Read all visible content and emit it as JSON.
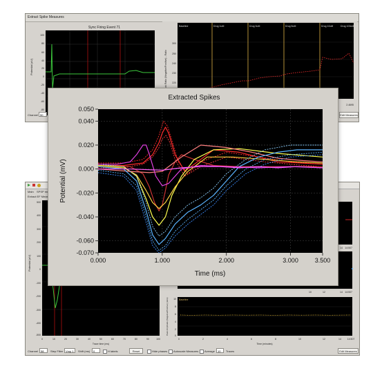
{
  "top_window": {
    "title": "Extract Spike Measures",
    "left_plot": {
      "title": "Sync Firing Event 71",
      "ylabel": "Potential (uV)",
      "yticks": [
        "100",
        "80",
        "60",
        "40",
        "20",
        "0",
        "-20",
        "-40",
        "-60",
        "-80"
      ]
    },
    "right_plot": {
      "ylabel": "Peak Ratio (Negative/Positive) - Ratio",
      "phases": [
        "Baseline",
        "Drug 1uM",
        "Drug 3uM",
        "Drug 5uM",
        "Drug 10uM",
        "Drug 100uM"
      ],
      "yticks": [
        "300",
        "250",
        "240",
        "230",
        "220",
        "210"
      ],
      "x_end": "2.4695"
    },
    "channel_label": "Channel",
    "channel_value": "50",
    "edit_button": "Edit Measures"
  },
  "bottom_window": {
    "menu": "Main",
    "menu2": "SPSP me...",
    "subtitle": "Extract EF Measures",
    "left_plot": {
      "ylabel": "Potential (uV)",
      "yticks": [
        "500",
        "400",
        "300",
        "200",
        "100",
        "0",
        "-100",
        "-200",
        "-300",
        "-400",
        "-500"
      ],
      "xticks": [
        "0",
        "10",
        "20",
        "30",
        "40",
        "50",
        "60",
        "70",
        "80",
        "90",
        "100"
      ],
      "xlabel": "Trace time (ms)"
    },
    "right_plots": [
      {
        "xticks": [
          "14",
          "14:507"
        ]
      },
      {
        "xticks": [
          "14",
          "14:507"
        ]
      },
      {
        "title": "Baseline",
        "ylabel": "Peak Amplitude (Negative/Positive) (ratio)",
        "yticks": [
          "10",
          "8",
          "6",
          "4",
          "2",
          "0"
        ],
        "xticks": [
          "0",
          "2",
          "4",
          "6",
          "8",
          "10",
          "12",
          "14",
          "14:507"
        ],
        "xlabel": "Time (minutes)"
      }
    ],
    "mid_xticks": [
      "10",
      "12"
    ],
    "toolbar": {
      "channel_label": "Channel",
      "channel_value": "58",
      "step_filter_label": "Step Filter",
      "step_filter_value": "Vmp 1",
      "shift_label": "Shift (ms)",
      "shift_value": "0",
      "hlabels": "H labels",
      "reset": "Reset",
      "hide_phases": "Hide phases",
      "autoscale": "Autoscale Measures",
      "average_label": "Average",
      "average_value": "10",
      "traces": "Traces",
      "edit": "Edit Measures"
    }
  },
  "main_window": {
    "title": "Extracted Spikes"
  },
  "chart_data": {
    "type": "line",
    "title": "Extracted Spikes",
    "xlabel": "Time (ms)",
    "ylabel": "Potential (mV)",
    "xlim": [
      0,
      3.5
    ],
    "ylim": [
      -0.07,
      0.05
    ],
    "xticks": [
      "0.000",
      "1.000",
      "2.000",
      "3.000",
      "3.500"
    ],
    "yticks": [
      "0.050",
      "0.040",
      "0.020",
      "0.000",
      "-0.020",
      "-0.040",
      "-0.060",
      "-0.070"
    ],
    "grid": true,
    "series": [
      {
        "color": "#ff2a2a",
        "dashed": false,
        "x": [
          0,
          0.4,
          0.7,
          0.85,
          0.95,
          1.0,
          1.05,
          1.1,
          1.2,
          1.35,
          1.5,
          1.8,
          2.2,
          2.8,
          3.5
        ],
        "y": [
          0.003,
          0.003,
          0.005,
          0.012,
          0.022,
          0.03,
          0.035,
          0.03,
          0.012,
          -0.002,
          0.004,
          0.016,
          0.014,
          0.006,
          0.004
        ]
      },
      {
        "color": "#ff2a2a",
        "dashed": true,
        "x": [
          0,
          0.4,
          0.7,
          0.85,
          0.95,
          1.02,
          1.08,
          1.15,
          1.25,
          1.4,
          1.6,
          2.0,
          2.5,
          3.0,
          3.5
        ],
        "y": [
          0.005,
          0.005,
          0.008,
          0.016,
          0.028,
          0.04,
          0.036,
          0.024,
          0.006,
          -0.004,
          0.006,
          0.014,
          0.01,
          0.006,
          0.004
        ]
      },
      {
        "color": "#ff3c3c",
        "dashed": true,
        "x": [
          0,
          0.4,
          0.7,
          0.85,
          0.95,
          1.0,
          1.06,
          1.12,
          1.2,
          1.35,
          1.6,
          2.0,
          2.6,
          3.2,
          3.5
        ],
        "y": [
          0.001,
          0.001,
          0.004,
          0.01,
          0.018,
          0.025,
          0.028,
          0.022,
          0.008,
          -0.006,
          0.002,
          0.01,
          0.006,
          0.003,
          0.002
        ]
      },
      {
        "color": "#c83232",
        "dashed": false,
        "x": [
          0,
          0.5,
          0.7,
          0.8,
          0.88,
          0.95,
          1.0,
          1.05,
          1.1,
          1.2,
          1.3,
          1.5,
          1.8,
          2.2,
          2.8,
          3.5
        ],
        "y": [
          0.003,
          0.002,
          -0.004,
          -0.015,
          -0.028,
          -0.035,
          -0.03,
          -0.018,
          -0.005,
          0.006,
          0.012,
          0.008,
          0.003,
          0.002,
          0.002,
          0.002
        ]
      },
      {
        "color": "#ffff50",
        "dashed": false,
        "x": [
          0,
          0.4,
          0.6,
          0.75,
          0.85,
          0.95,
          1.05,
          1.15,
          1.3,
          1.5,
          1.8,
          2.2,
          2.8,
          3.5
        ],
        "y": [
          0.003,
          0.002,
          -0.006,
          -0.025,
          -0.04,
          -0.047,
          -0.04,
          -0.022,
          -0.006,
          0.008,
          0.016,
          0.017,
          0.013,
          0.01
        ]
      },
      {
        "color": "#ffd040",
        "dashed": false,
        "x": [
          0,
          0.4,
          0.6,
          0.75,
          0.85,
          0.95,
          1.05,
          1.2,
          1.4,
          1.7,
          2.1,
          2.6,
          3.1,
          3.5
        ],
        "y": [
          0.002,
          0.001,
          -0.005,
          -0.018,
          -0.028,
          -0.033,
          -0.028,
          -0.015,
          -0.002,
          0.01,
          0.01,
          0.008,
          0.006,
          0.005
        ]
      },
      {
        "color": "#ff8080",
        "dashed": false,
        "x": [
          0,
          0.5,
          0.8,
          1.0,
          1.3,
          1.6,
          2.0,
          2.4,
          2.8,
          3.2,
          3.5
        ],
        "y": [
          0.0,
          -0.002,
          -0.003,
          -0.002,
          0.01,
          0.02,
          0.018,
          0.014,
          0.009,
          0.007,
          0.006
        ]
      },
      {
        "color": "#5ab4ff",
        "dashed": false,
        "x": [
          0,
          0.4,
          0.6,
          0.75,
          0.85,
          0.95,
          1.05,
          1.2,
          1.4,
          1.6,
          1.8,
          2.0,
          2.2,
          2.5,
          2.8,
          3.1,
          3.5
        ],
        "y": [
          0.002,
          0.0,
          -0.01,
          -0.035,
          -0.055,
          -0.063,
          -0.058,
          -0.046,
          -0.036,
          -0.03,
          -0.022,
          -0.01,
          0.002,
          0.01,
          0.014,
          0.016,
          0.016
        ]
      },
      {
        "color": "#5ab4ff",
        "dashed": true,
        "x": [
          0,
          0.4,
          0.6,
          0.75,
          0.85,
          0.95,
          1.05,
          1.2,
          1.4,
          1.6,
          1.8,
          2.0,
          2.3,
          2.6,
          3.0,
          3.5
        ],
        "y": [
          -0.001,
          -0.004,
          -0.014,
          -0.04,
          -0.06,
          -0.068,
          -0.064,
          -0.052,
          -0.042,
          -0.034,
          -0.026,
          -0.014,
          0.0,
          0.008,
          0.012,
          0.014
        ]
      },
      {
        "color": "#8cd0ff",
        "dashed": true,
        "x": [
          0,
          0.4,
          0.6,
          0.75,
          0.85,
          0.95,
          1.05,
          1.2,
          1.4,
          1.6,
          1.8,
          2.0,
          2.3,
          2.6,
          3.0,
          3.5
        ],
        "y": [
          0.004,
          0.002,
          -0.006,
          -0.028,
          -0.048,
          -0.056,
          -0.052,
          -0.04,
          -0.03,
          -0.024,
          -0.016,
          -0.004,
          0.008,
          0.016,
          0.02,
          0.02
        ]
      },
      {
        "color": "#3c8cff",
        "dashed": true,
        "x": [
          0,
          0.4,
          0.6,
          0.75,
          0.85,
          0.95,
          1.05,
          1.2,
          1.4,
          1.6,
          1.8,
          2.0,
          2.3,
          2.6,
          3.0,
          3.5
        ],
        "y": [
          -0.003,
          -0.006,
          -0.018,
          -0.045,
          -0.064,
          -0.07,
          -0.066,
          -0.056,
          -0.046,
          -0.038,
          -0.03,
          -0.018,
          -0.004,
          0.004,
          0.01,
          0.012
        ]
      },
      {
        "color": "#e040e0",
        "dashed": false,
        "x": [
          0,
          0.3,
          0.5,
          0.6,
          0.7,
          0.75,
          0.8,
          0.9,
          1.0,
          1.1,
          1.3,
          1.6,
          2.0,
          2.5,
          3.0,
          3.5
        ],
        "y": [
          0.004,
          0.004,
          0.006,
          0.012,
          0.02,
          0.02,
          0.012,
          -0.006,
          -0.014,
          -0.012,
          0.0,
          0.003,
          0.002,
          0.001,
          0.002,
          0.001
        ]
      },
      {
        "color": "#ff60ff",
        "dashed": false,
        "x": [
          0,
          0.5,
          1.0,
          1.3,
          1.6,
          1.9,
          2.2,
          2.5,
          2.8,
          3.1,
          3.5
        ],
        "y": [
          0.0,
          0.0,
          -0.001,
          0.001,
          0.002,
          0.002,
          0.001,
          0.002,
          0.001,
          0.002,
          0.001
        ]
      }
    ]
  }
}
